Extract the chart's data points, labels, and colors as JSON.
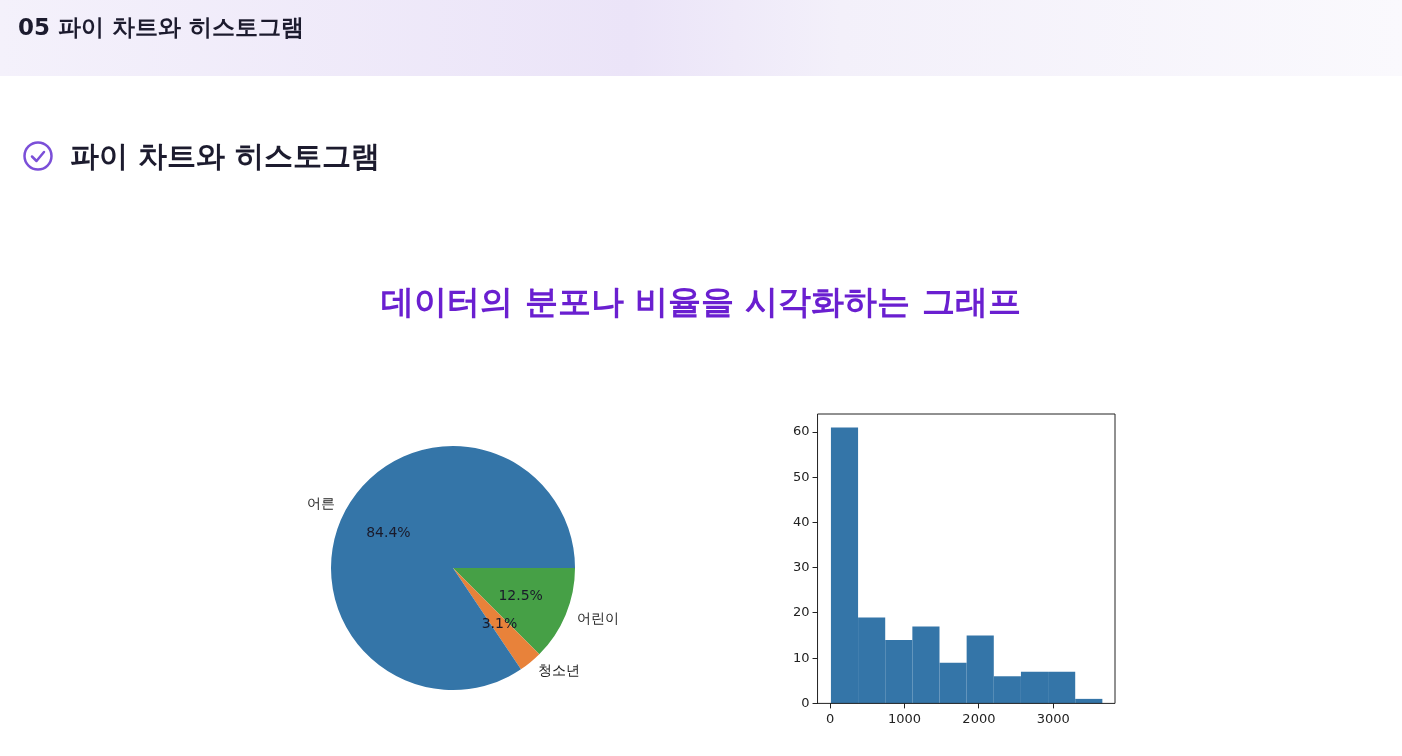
{
  "chart_data": [
    {
      "type": "pie",
      "title": "데이터의 분포나 비율을 시각화하는 그래프",
      "annotations": [
        "05 파이 차트와 히스토그램",
        "파이 차트와 히스토그램"
      ],
      "categories": [
        "어린이",
        "청소년",
        "어른"
      ],
      "values": [
        12.5,
        3.1,
        84.4
      ],
      "value_labels": [
        "12.5%",
        "3.1%",
        "84.4%"
      ],
      "colors": [
        "#46a046",
        "#e8823a",
        "#3475a8"
      ],
      "legend": false
    },
    {
      "type": "histogram",
      "bins": [
        10,
        375,
        740,
        1105,
        1470,
        1835,
        2200,
        2565,
        2930,
        3295,
        3660
      ],
      "values": [
        61,
        19,
        14,
        17,
        9,
        15,
        6,
        7,
        7,
        1
      ],
      "color": "#3475a8",
      "xlim": [
        -170,
        3830
      ],
      "xticks": [
        0,
        1000,
        2000,
        3000
      ],
      "ylim": [
        0,
        64
      ],
      "yticks": [
        0,
        10,
        20,
        30,
        40,
        50,
        60
      ],
      "grid": false,
      "legend": false
    }
  ]
}
